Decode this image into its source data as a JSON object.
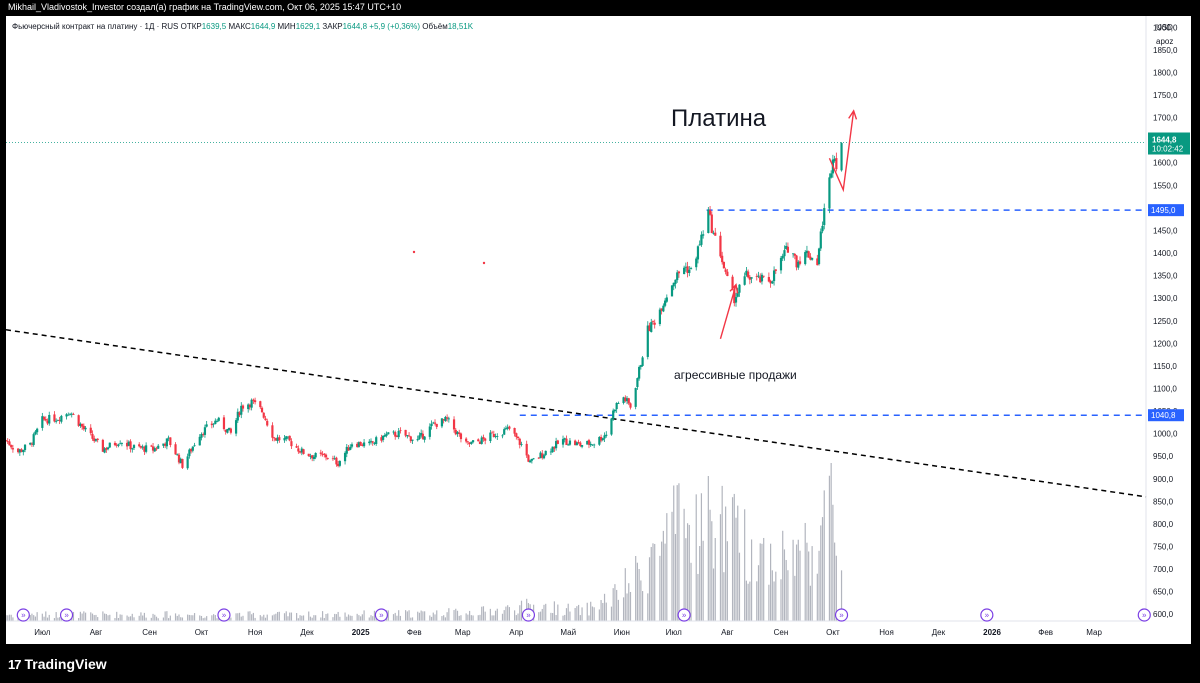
{
  "header": {
    "credit": "Mikhail_Vladivostok_Investor создал(а) график на TradingView.com, Окт 06, 2025 15:47 UTC+10"
  },
  "legend": {
    "symbol": "Фьючерсный контракт на платину · 1Д · RUS",
    "open_label": "ОТКР",
    "open": "1639,5",
    "high_label": "МАКС",
    "high": "1644,9",
    "low_label": "МИН",
    "low": "1629,1",
    "close_label": "ЗАКР",
    "close": "1644,8",
    "change": "+5,9 (+0,36%)",
    "volume_label": "Объём",
    "volume": "18,51K"
  },
  "price_scale": {
    "currency": "USD",
    "mode": "apoz"
  },
  "footer": {
    "brand": "TradingView"
  },
  "colors": {
    "up": "#089981",
    "down": "#f23645",
    "level_line": "#2962ff",
    "trend_line": "#000000",
    "arrow": "#f23645",
    "volume": "#b2b5be"
  },
  "chart_data": {
    "type": "candlestick",
    "title": "Платина",
    "annotation": "агрессивные продажи",
    "ylim": [
      585,
      1925
    ],
    "y_ticks": [
      {
        "v": 600,
        "t": "600,0"
      },
      {
        "v": 650,
        "t": "650,0"
      },
      {
        "v": 700,
        "t": "700,0"
      },
      {
        "v": 750,
        "t": "750,0"
      },
      {
        "v": 800,
        "t": "800,0"
      },
      {
        "v": 850,
        "t": "850,0"
      },
      {
        "v": 900,
        "t": "900,0"
      },
      {
        "v": 950,
        "t": "950,0"
      },
      {
        "v": 1000,
        "t": "1000,0"
      },
      {
        "v": 1050,
        "t": "1050,0"
      },
      {
        "v": 1100,
        "t": "1100,0"
      },
      {
        "v": 1150,
        "t": "1150,0"
      },
      {
        "v": 1200,
        "t": "1200,0"
      },
      {
        "v": 1250,
        "t": "1250,0"
      },
      {
        "v": 1300,
        "t": "1300,0"
      },
      {
        "v": 1350,
        "t": "1350,0"
      },
      {
        "v": 1400,
        "t": "1400,0"
      },
      {
        "v": 1450,
        "t": "1450,0"
      },
      {
        "v": 1550,
        "t": "1550,0"
      },
      {
        "v": 1600,
        "t": "1600,0"
      },
      {
        "v": 1650,
        "t": "1650,0"
      },
      {
        "v": 1700,
        "t": "1700,0"
      },
      {
        "v": 1750,
        "t": "1750,0"
      },
      {
        "v": 1800,
        "t": "1800,0"
      },
      {
        "v": 1850,
        "t": "1850,0"
      },
      {
        "v": 1900,
        "t": "1900,0"
      }
    ],
    "x_labels": [
      "Июл",
      "Авг",
      "Сен",
      "Окт",
      "Ноя",
      "Дек",
      "2025",
      "Фев",
      "Мар",
      "Апр",
      "Май",
      "Июн",
      "Июл",
      "Авг",
      "Сен",
      "Окт",
      "Ноя",
      "Дек",
      "2026",
      "Фев",
      "Мар"
    ],
    "x_range": [
      "2024-06-10",
      "2026-03-31"
    ],
    "last_price": {
      "value": 1644.8,
      "label": "1644,8",
      "countdown": "10:02:42"
    },
    "levels": [
      {
        "value": 1495.0,
        "label": "1495,0"
      },
      {
        "value": 1040.8,
        "label": "1040,8"
      }
    ],
    "trendline": [
      {
        "date": "2024-06-10",
        "price": 1230
      },
      {
        "date": "2026-03-31",
        "price": 860
      }
    ],
    "level_starts": {
      "1495.0": "2025-07-20",
      "1040.8": "2025-04-03"
    },
    "arrows": [
      {
        "from": {
          "date": "2025-07-28",
          "price": 1210
        },
        "to": {
          "date": "2025-08-06",
          "price": 1330
        }
      },
      {
        "from": {
          "date": "2025-09-29",
          "price": 1610
        },
        "via": {
          "date": "2025-10-07",
          "price": 1540
        },
        "to": {
          "date": "2025-10-13",
          "price": 1715
        }
      }
    ],
    "price_path": [
      [
        "2024-06-10",
        985
      ],
      [
        "2024-06-17",
        960
      ],
      [
        "2024-06-24",
        975
      ],
      [
        "2024-07-01",
        1030
      ],
      [
        "2024-07-10",
        1035
      ],
      [
        "2024-07-17",
        1050
      ],
      [
        "2024-07-25",
        1010
      ],
      [
        "2024-08-05",
        965
      ],
      [
        "2024-08-15",
        985
      ],
      [
        "2024-08-22",
        970
      ],
      [
        "2024-09-03",
        965
      ],
      [
        "2024-09-12",
        985
      ],
      [
        "2024-09-20",
        930
      ],
      [
        "2024-09-30",
        1000
      ],
      [
        "2024-10-10",
        1030
      ],
      [
        "2024-10-18",
        1000
      ],
      [
        "2024-10-24",
        1060
      ],
      [
        "2024-10-30",
        1070
      ],
      [
        "2024-11-05",
        1050
      ],
      [
        "2024-11-12",
        990
      ],
      [
        "2024-11-20",
        985
      ],
      [
        "2024-11-28",
        960
      ],
      [
        "2024-12-05",
        950
      ],
      [
        "2024-12-12",
        950
      ],
      [
        "2024-12-19",
        935
      ],
      [
        "2024-12-27",
        980
      ],
      [
        "2025-01-06",
        975
      ],
      [
        "2025-01-15",
        995
      ],
      [
        "2025-01-24",
        1000
      ],
      [
        "2025-02-03",
        985
      ],
      [
        "2025-02-12",
        1020
      ],
      [
        "2025-02-20",
        1030
      ],
      [
        "2025-03-03",
        975
      ],
      [
        "2025-03-12",
        985
      ],
      [
        "2025-03-20",
        1000
      ],
      [
        "2025-03-28",
        1010
      ],
      [
        "2025-04-04",
        975
      ],
      [
        "2025-04-09",
        935
      ],
      [
        "2025-04-18",
        960
      ],
      [
        "2025-04-28",
        985
      ],
      [
        "2025-05-08",
        975
      ],
      [
        "2025-05-16",
        980
      ],
      [
        "2025-05-23",
        1000
      ],
      [
        "2025-05-28",
        1060
      ],
      [
        "2025-06-02",
        1080
      ],
      [
        "2025-06-06",
        1060
      ],
      [
        "2025-06-11",
        1140
      ],
      [
        "2025-06-16",
        1230
      ],
      [
        "2025-06-20",
        1250
      ],
      [
        "2025-06-26",
        1300
      ],
      [
        "2025-07-01",
        1340
      ],
      [
        "2025-07-07",
        1370
      ],
      [
        "2025-07-11",
        1360
      ],
      [
        "2025-07-16",
        1420
      ],
      [
        "2025-07-21",
        1490
      ],
      [
        "2025-07-24",
        1440
      ],
      [
        "2025-07-28",
        1400
      ],
      [
        "2025-07-31",
        1350
      ],
      [
        "2025-08-05",
        1300
      ],
      [
        "2025-08-12",
        1350
      ],
      [
        "2025-08-19",
        1340
      ],
      [
        "2025-08-26",
        1340
      ],
      [
        "2025-09-02",
        1390
      ],
      [
        "2025-09-06",
        1420
      ],
      [
        "2025-09-10",
        1380
      ],
      [
        "2025-09-16",
        1400
      ],
      [
        "2025-09-22",
        1380
      ],
      [
        "2025-09-25",
        1470
      ],
      [
        "2025-09-29",
        1560
      ],
      [
        "2025-10-01",
        1620
      ],
      [
        "2025-10-03",
        1600
      ],
      [
        "2025-10-06",
        1645
      ]
    ],
    "volume_path": [
      [
        "2024-06-10",
        0.05
      ],
      [
        "2024-12-01",
        0.05
      ],
      [
        "2025-02-10",
        0.06
      ],
      [
        "2025-03-20",
        0.08
      ],
      [
        "2025-04-10",
        0.12
      ],
      [
        "2025-05-10",
        0.08
      ],
      [
        "2025-05-28",
        0.2
      ],
      [
        "2025-06-10",
        0.35
      ],
      [
        "2025-06-20",
        0.55
      ],
      [
        "2025-07-01",
        0.7
      ],
      [
        "2025-07-25",
        0.8
      ],
      [
        "2025-08-15",
        0.55
      ],
      [
        "2025-09-05",
        0.5
      ],
      [
        "2025-09-20",
        0.6
      ],
      [
        "2025-10-01",
        0.95
      ],
      [
        "2025-10-06",
        0.4
      ]
    ],
    "volume_peak_price": 935
  }
}
